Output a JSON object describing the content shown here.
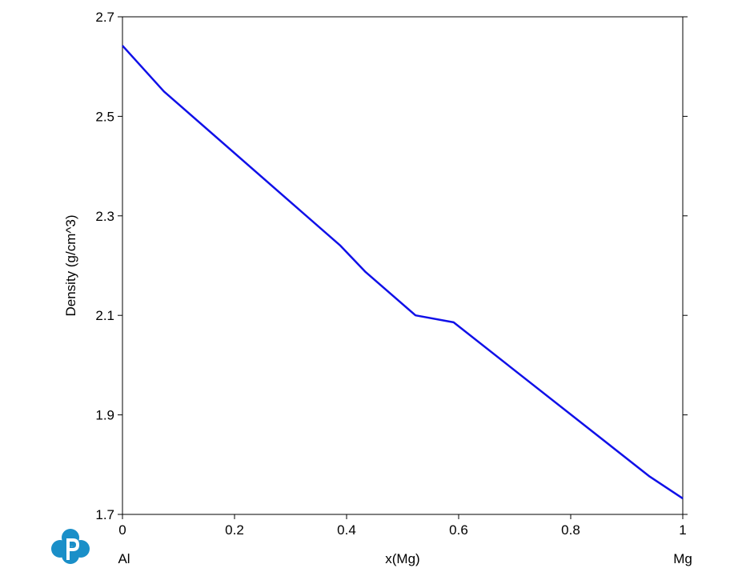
{
  "chart_data": {
    "type": "line",
    "y_label": "Density (g/cm^3)",
    "x_label": "x(Mg)",
    "x_start_label": "Al",
    "x_end_label": "Mg",
    "x": [
      0,
      0.074,
      0.389,
      0.434,
      0.523,
      0.591,
      0.941,
      1
    ],
    "series": [
      {
        "color": "#1010e8",
        "values": [
          2.642,
          2.55,
          2.24,
          2.187,
          2.1,
          2.086,
          1.776,
          1.732
        ]
      }
    ],
    "xlim": [
      0,
      1
    ],
    "xticks": [
      0,
      0.2,
      0.4,
      0.6,
      0.8,
      1
    ],
    "ylim": [
      1.7,
      2.7
    ],
    "yticks": [
      1.7,
      1.9,
      2.1,
      2.3,
      2.5,
      2.7
    ]
  }
}
